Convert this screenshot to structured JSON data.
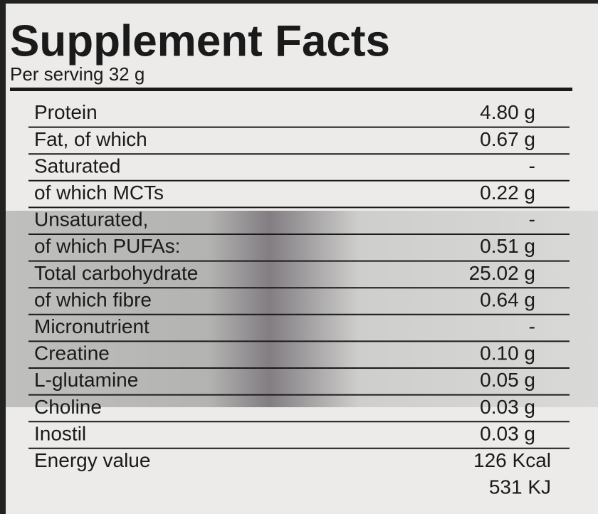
{
  "header": {
    "title": "Supplement Facts",
    "subtitle": "Per serving 32 g"
  },
  "table": {
    "rows": [
      [
        "Protein",
        "4.80 g"
      ],
      [
        "Fat, of which",
        "0.67 g"
      ],
      [
        "Saturated",
        "-"
      ],
      [
        "of which MCTs",
        "0.22 g"
      ],
      [
        "Unsaturated,",
        "-"
      ],
      [
        "of which PUFAs:",
        "0.51 g"
      ],
      [
        "Total carbohydrate",
        "25.02 g"
      ],
      [
        "of which fibre",
        "0.64 g"
      ],
      [
        "Micronutrient",
        "-"
      ],
      [
        "Creatine",
        "0.10 g"
      ],
      [
        "L-glutamine",
        "0.05 g"
      ],
      [
        "Choline",
        "0.03 g"
      ],
      [
        "Inostil",
        "0.03 g"
      ],
      [
        "Energy value",
        "126 Kcal",
        "531 KJ"
      ]
    ]
  }
}
